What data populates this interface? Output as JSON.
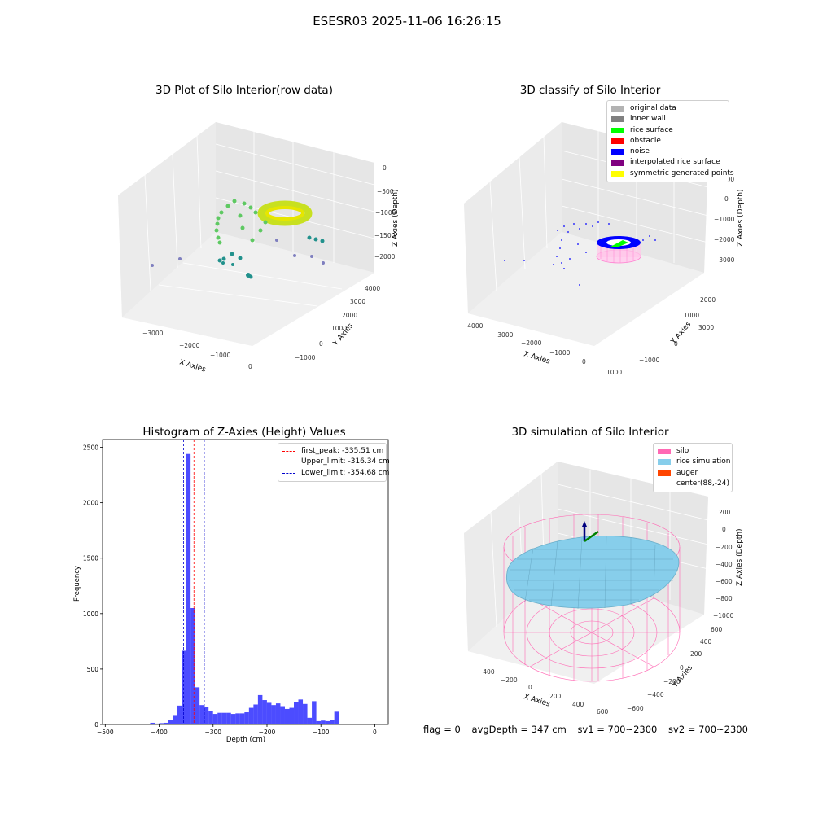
{
  "figure_title": "ESESR03 2025-11-06 16:26:15",
  "panels": {
    "raw": {
      "title": "3D Plot of Silo Interior(row data)",
      "xlabel": "X Axies",
      "ylabel": "Y Axies",
      "zlabel": "Z Axies (Depth)",
      "xticks": [
        "−3000",
        "−2000",
        "−1000",
        "0"
      ],
      "yticks": [
        "−1000",
        "0",
        "1000",
        "2000",
        "3000",
        "4000"
      ],
      "zticks": [
        "0",
        "−500",
        "−1000",
        "−1500",
        "−2000"
      ]
    },
    "classify": {
      "title": "3D classify of Silo Interior",
      "xlabel": "X Axies",
      "ylabel": "Y Axies",
      "zlabel": "Z Axies (Depth)",
      "xticks": [
        "−4000",
        "−3000",
        "−2000",
        "−1000",
        "0",
        "1000"
      ],
      "yticks": [
        "−1000",
        "0",
        "1000",
        "2000",
        "3000"
      ],
      "zticks": [
        "1000",
        "0",
        "−1000",
        "−2000",
        "−3000"
      ],
      "legend": [
        {
          "label": "original data",
          "color": "#b3b3b3"
        },
        {
          "label": "inner wall",
          "color": "#808080"
        },
        {
          "label": "rice surface",
          "color": "#00ff00"
        },
        {
          "label": "obstacle",
          "color": "#ff0000"
        },
        {
          "label": "noise",
          "color": "#0000ff"
        },
        {
          "label": "interpolated rice surface",
          "color": "#800080"
        },
        {
          "label": "symmetric generated points",
          "color": "#ffff00"
        }
      ]
    },
    "simulation": {
      "title": "3D simulation of Silo Interior",
      "xlabel": "X Axies",
      "ylabel": "Y Axies",
      "zlabel": "Z Axies (Depth)",
      "xticks": [
        "−400",
        "−200",
        "0",
        "200",
        "400",
        "600"
      ],
      "yticks": [
        "−600",
        "−400",
        "−200",
        "0",
        "200",
        "400",
        "600"
      ],
      "zticks": [
        "200",
        "0",
        "−200",
        "−400",
        "−600",
        "−800",
        "−1000"
      ],
      "legend": [
        {
          "label": "silo",
          "color": "#ff69b4"
        },
        {
          "label": "rice simulation",
          "color": "#87ceeb"
        },
        {
          "label": "auger",
          "color": "#ff4500"
        },
        {
          "label": "center(88,-24)",
          "color": "#ffffff"
        }
      ]
    }
  },
  "chart_data": {
    "type": "bar",
    "title": "Histogram of Z-Axies (Height) Values",
    "xlabel": "Depth (cm)",
    "ylabel": "Frequency",
    "xlim": [
      -505,
      25
    ],
    "ylim": [
      0,
      2570
    ],
    "xticks": [
      -500,
      -400,
      -300,
      -200,
      -100,
      0
    ],
    "yticks": [
      0,
      500,
      1000,
      1500,
      2000,
      2500
    ],
    "bin_width": 8.33,
    "bin_start": -416.7,
    "values": [
      15,
      8,
      12,
      15,
      40,
      85,
      170,
      665,
      2440,
      1050,
      335,
      175,
      160,
      120,
      95,
      105,
      105,
      105,
      95,
      100,
      100,
      110,
      150,
      180,
      265,
      220,
      195,
      175,
      190,
      165,
      140,
      150,
      205,
      225,
      185,
      60,
      210,
      30,
      35,
      30,
      40,
      115
    ],
    "color": "#0000ff",
    "lines": [
      {
        "label": "first_peak: -335.51 cm",
        "x": -335.51,
        "color": "#ff0000"
      },
      {
        "label": "Upper_limit: -316.34 cm",
        "x": -316.34,
        "color": "#0000cd"
      },
      {
        "label": "Lower_limit: -354.68 cm",
        "x": -354.68,
        "color": "#0000cd"
      }
    ],
    "legend_position": "top-right"
  },
  "footer": {
    "flag": "flag = 0",
    "avg": "avgDepth = 347 cm",
    "sv1": "sv1 = 700~2300",
    "sv2": "sv2 = 700~2300"
  }
}
